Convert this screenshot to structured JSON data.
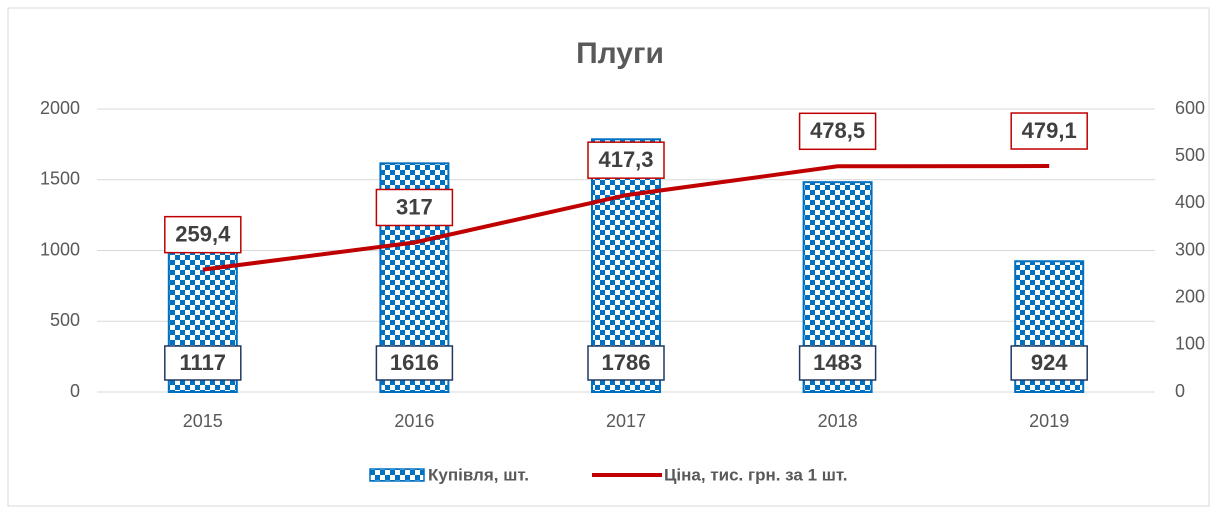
{
  "chart_data": {
    "type": "combo",
    "title": "Плуги",
    "categories": [
      "2015",
      "2016",
      "2017",
      "2018",
      "2019"
    ],
    "series": [
      {
        "name": "Купівля, шт.",
        "type": "bar",
        "color": "#0070c0",
        "values": [
          1117,
          1616,
          1786,
          1483,
          924
        ]
      },
      {
        "name": "Ціна, тис. грн. за 1 шт.",
        "type": "line",
        "axis": "y2",
        "color": "#c00000",
        "values": [
          259.4,
          317,
          417.3,
          478.5,
          479.1
        ],
        "value_labels": [
          "259,4",
          "317",
          "417,3",
          "478,5",
          "479,1"
        ]
      }
    ],
    "ylim": [
      0,
      2000
    ],
    "yticks": [
      0,
      500,
      1000,
      1500,
      2000
    ],
    "y2lim": [
      0,
      600
    ],
    "y2ticks": [
      0,
      100,
      200,
      300,
      400,
      500,
      600
    ],
    "grid": true,
    "legend": "bottom"
  }
}
